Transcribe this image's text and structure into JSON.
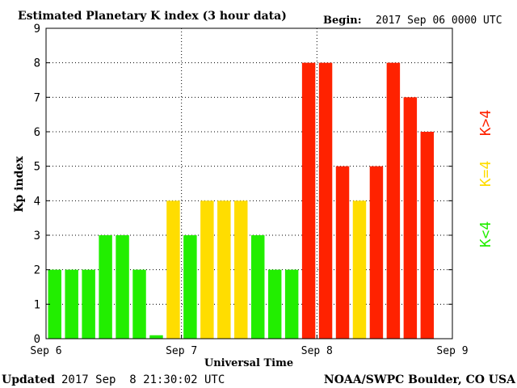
{
  "header": {
    "title": "Estimated Planetary K index (3 hour data)",
    "begin_label": "Begin:",
    "begin_value": "2017 Sep 06 0000 UTC"
  },
  "footer": {
    "updated_label": "Updated",
    "updated_value": "2017 Sep  8 21:30:02 UTC",
    "source": "NOAA/SWPC Boulder, CO USA"
  },
  "legend": {
    "low": "K<4",
    "mid": "K=4",
    "high": "K>4"
  },
  "colors": {
    "low": "#22ee00",
    "mid": "#ffdd00",
    "high": "#ff2200"
  },
  "chart_data": {
    "type": "bar",
    "title": "Estimated Planetary K index (3 hour data)",
    "xlabel": "Universal Time",
    "ylabel": "Kp index",
    "ylim": [
      0,
      9
    ],
    "yticks": [
      "0",
      "1",
      "2",
      "3",
      "4",
      "5",
      "6",
      "7",
      "8",
      "9"
    ],
    "xtick_labels": [
      "Sep 6",
      "Sep 7",
      "Sep 8",
      "Sep 9"
    ],
    "grid": "dotted at day boundaries and integer Kp levels",
    "legend_position": "right",
    "interval_hours": 3,
    "slot_count": 24,
    "values": [
      2,
      2,
      2,
      3,
      3,
      2,
      0.1,
      4,
      3,
      4,
      4,
      4,
      3,
      2,
      2,
      8,
      8,
      5,
      4,
      5,
      8,
      7,
      6
    ]
  }
}
